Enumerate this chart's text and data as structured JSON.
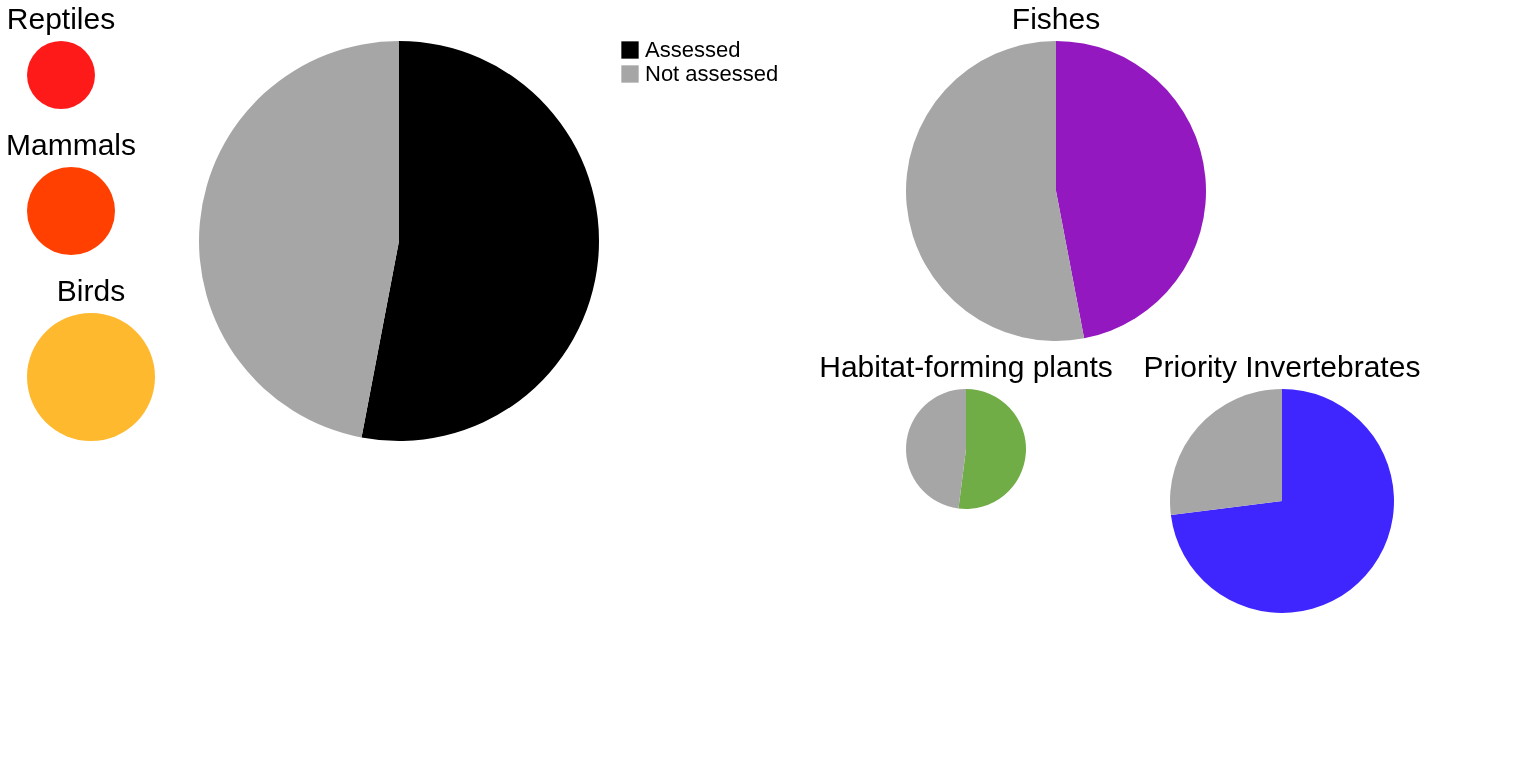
{
  "chart_data": [
    {
      "type": "pie",
      "categories": [
        "Assessed",
        "Not assessed"
      ],
      "values": [
        53,
        47
      ],
      "colors": [
        "#000000",
        "#a6a6a6"
      ],
      "legend": "top right"
    },
    {
      "type": "pie",
      "title": "Reptiles",
      "categories": [
        null,
        null
      ],
      "values": [
        100,
        0
      ],
      "colors": [
        "#ff1a1a",
        "#a6a6a6"
      ]
    },
    {
      "type": "pie",
      "title": "Fishes",
      "categories": [
        null,
        null
      ],
      "values": [
        47,
        53
      ],
      "colors": [
        "#9418bf",
        "#a6a6a6"
      ]
    },
    {
      "type": "pie",
      "title": "Mammals",
      "categories": [
        null,
        null
      ],
      "values": [
        100,
        0
      ],
      "colors": [
        "#ff4000",
        "#a6a6a6"
      ]
    },
    {
      "type": "pie",
      "title": "Birds",
      "categories": [
        null,
        null
      ],
      "values": [
        100,
        0
      ],
      "colors": [
        "#ffb92e",
        "#a6a6a6"
      ]
    },
    {
      "type": "pie",
      "title": "Priority Invertebrates",
      "categories": [
        null,
        null
      ],
      "values": [
        73,
        27
      ],
      "colors": [
        "#3f26ff",
        "#a6a6a6"
      ]
    },
    {
      "type": "pie",
      "title": "Habitat-forming plants",
      "categories": [
        null,
        null
      ],
      "values": [
        52,
        48
      ],
      "colors": [
        "#70ad47",
        "#a6a6a6"
      ]
    }
  ]
}
